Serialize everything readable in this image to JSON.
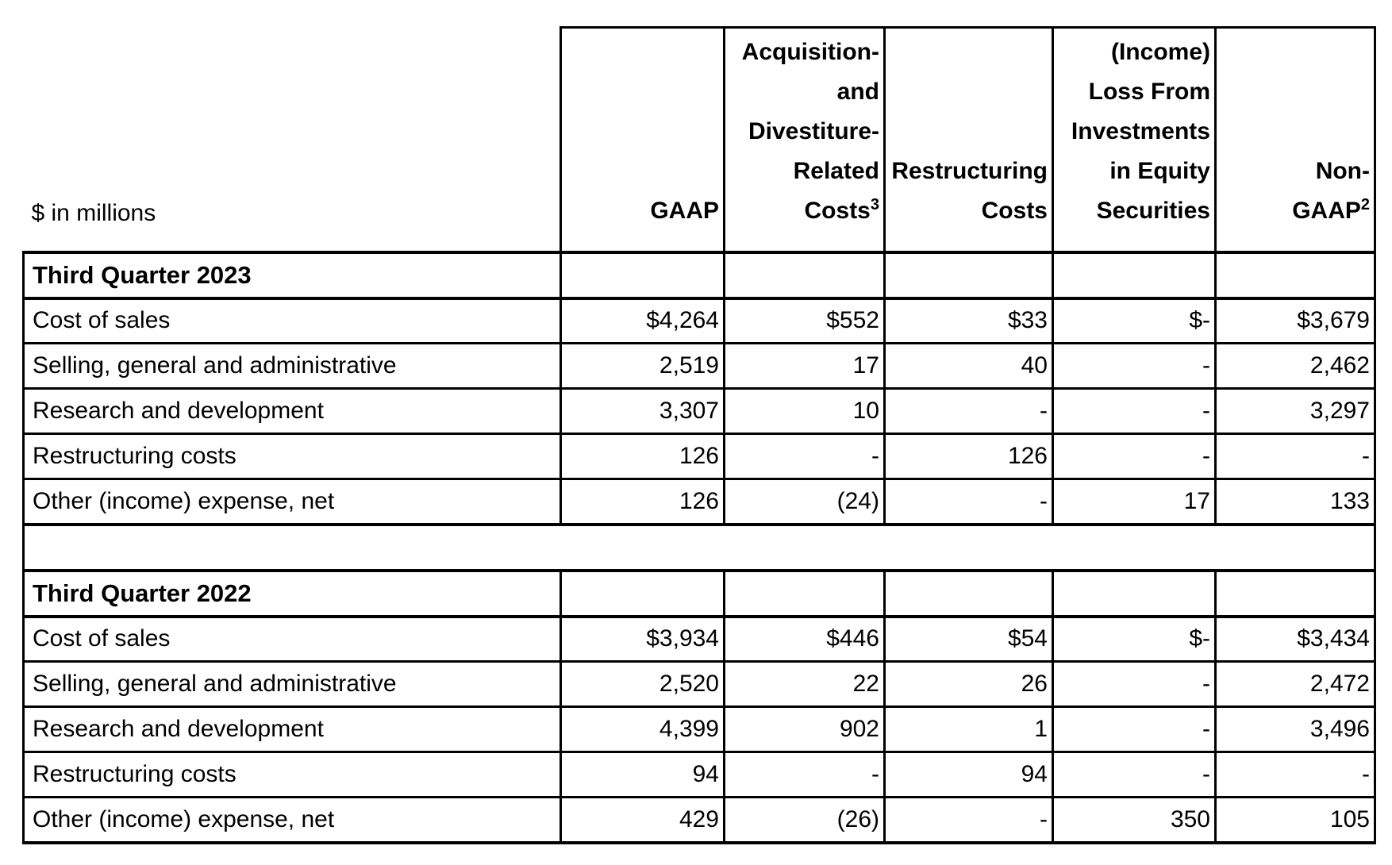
{
  "table": {
    "unit_label": "$ in millions",
    "columns": [
      {
        "lines": [
          "GAAP"
        ],
        "sup": null
      },
      {
        "lines": [
          "Acquisition-",
          "and",
          "Divestiture-",
          "Related",
          "Costs"
        ],
        "sup": "3"
      },
      {
        "lines": [
          "Restructuring",
          "Costs"
        ],
        "sup": null
      },
      {
        "lines": [
          "(Income)",
          "Loss From",
          "Investments",
          "in Equity",
          "Securities"
        ],
        "sup": null
      },
      {
        "lines": [
          "Non-",
          "GAAP"
        ],
        "sup": "2"
      }
    ],
    "sections": [
      {
        "title": "Third Quarter 2023",
        "rows": [
          {
            "label": "Cost of sales",
            "values": [
              "$4,264",
              "$552",
              "$33",
              "$-",
              "$3,679"
            ]
          },
          {
            "label": "Selling, general and administrative",
            "values": [
              "2,519",
              "17",
              "40",
              "-",
              "2,462"
            ]
          },
          {
            "label": "Research and development",
            "values": [
              "3,307",
              "10",
              "-",
              "-",
              "3,297"
            ]
          },
          {
            "label": "Restructuring costs",
            "values": [
              "126",
              "-",
              "126",
              "-",
              "-"
            ]
          },
          {
            "label": "Other (income) expense, net",
            "values": [
              "126",
              "(24)",
              "-",
              "17",
              "133"
            ]
          }
        ]
      },
      {
        "title": "Third Quarter 2022",
        "rows": [
          {
            "label": "Cost of sales",
            "values": [
              "$3,934",
              "$446",
              "$54",
              "$-",
              "$3,434"
            ]
          },
          {
            "label": "Selling, general and administrative",
            "values": [
              "2,520",
              "22",
              "26",
              "-",
              "2,472"
            ]
          },
          {
            "label": "Research and development",
            "values": [
              "4,399",
              "902",
              "1",
              "-",
              "3,496"
            ]
          },
          {
            "label": "Restructuring costs",
            "values": [
              "94",
              "-",
              "94",
              "-",
              "-"
            ]
          },
          {
            "label": "Other (income) expense, net",
            "values": [
              "429",
              "(26)",
              "-",
              "350",
              "105"
            ]
          }
        ]
      }
    ],
    "colors": {
      "border": "#000000",
      "text": "#000000",
      "background": "#ffffff"
    }
  }
}
